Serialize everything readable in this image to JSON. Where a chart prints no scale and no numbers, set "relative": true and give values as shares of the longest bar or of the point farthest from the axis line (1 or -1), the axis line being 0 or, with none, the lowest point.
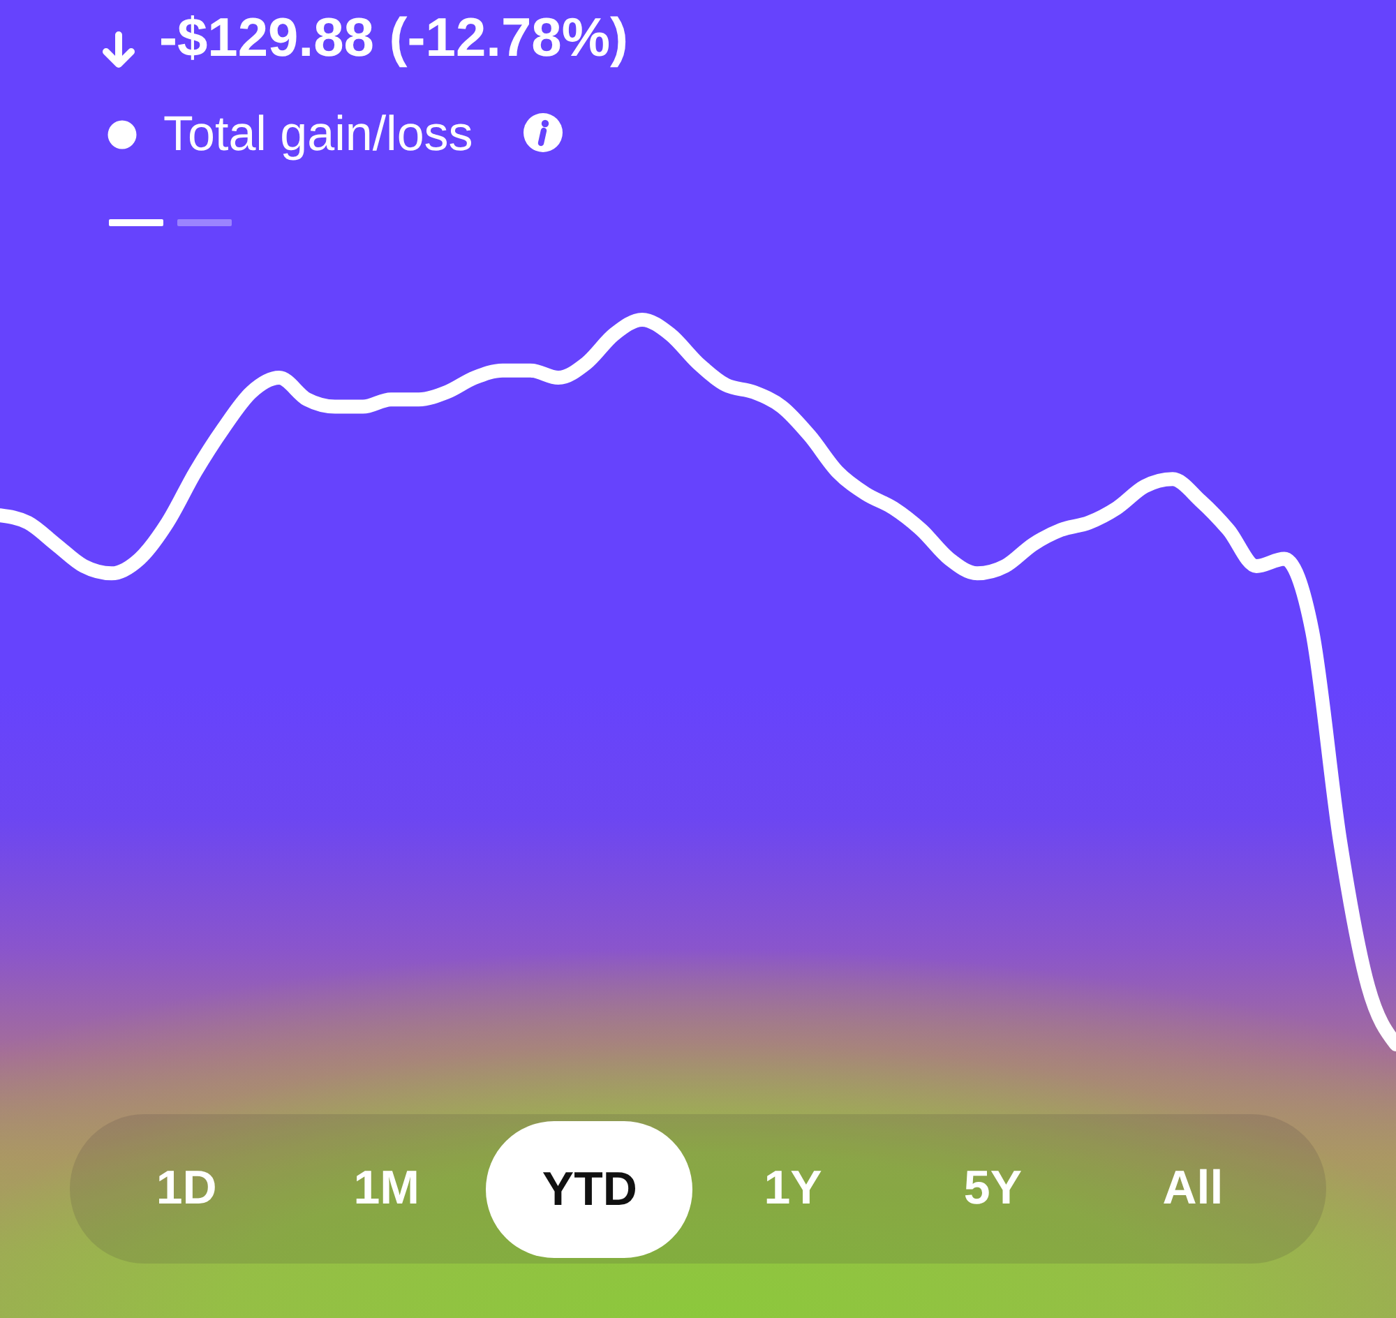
{
  "chart_data": {
    "type": "line",
    "title": "-$129.88 (-12.78%)",
    "categories": [
      null,
      null,
      null,
      null,
      null,
      null,
      null,
      null,
      null,
      null,
      null,
      null,
      null,
      null,
      null,
      null,
      null,
      null,
      null,
      null,
      null,
      null,
      null,
      null,
      null,
      null,
      null,
      null,
      null,
      null,
      null,
      null,
      null,
      null,
      null,
      null,
      null,
      null,
      null,
      null,
      null,
      null,
      null,
      null,
      null,
      null,
      null,
      null,
      null,
      null,
      null
    ],
    "series": [
      {
        "name": "Total gain/loss",
        "color": "#ffffff",
        "values": [
          0.73,
          0.72,
          0.69,
          0.66,
          0.65,
          0.67,
          0.72,
          0.79,
          0.85,
          0.9,
          0.92,
          0.89,
          0.88,
          0.88,
          0.89,
          0.89,
          0.9,
          0.92,
          0.93,
          0.93,
          0.92,
          0.94,
          0.98,
          1,
          0.98,
          0.94,
          0.91,
          0.9,
          0.88,
          0.84,
          0.79,
          0.76,
          0.74,
          0.71,
          0.67,
          0.65,
          0.66,
          0.69,
          0.71,
          0.72,
          0.74,
          0.77,
          0.78,
          0.75,
          0.71,
          0.66,
          0.67,
          0.57,
          0.28,
          0.08,
          0
        ]
      }
    ],
    "relative": true,
    "legend": "top left",
    "annotations": [
      "1D",
      "1M",
      "YTD",
      "1Y",
      "5Y",
      "All"
    ]
  }
}
